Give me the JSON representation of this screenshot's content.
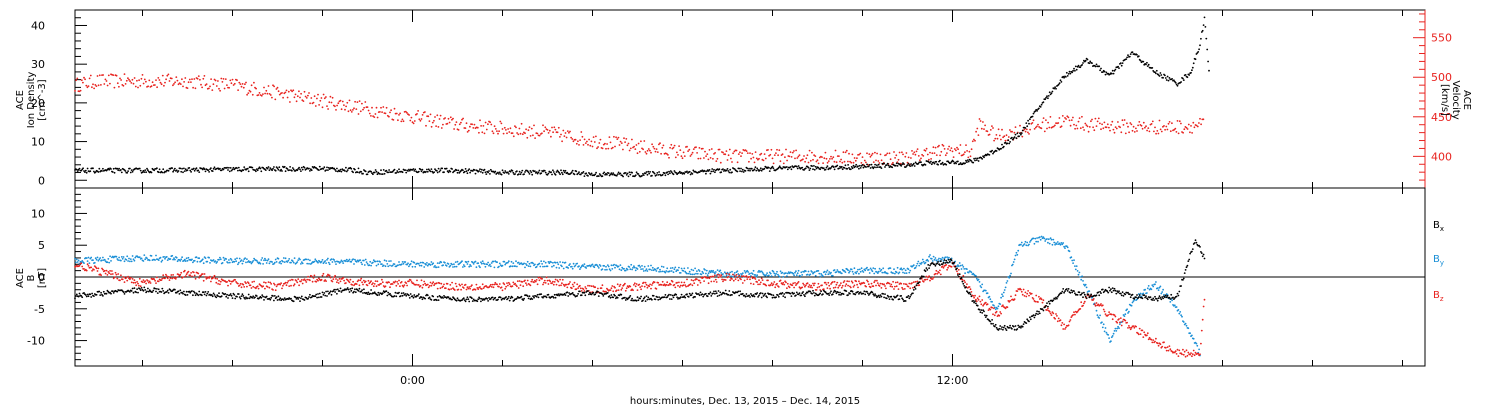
{
  "chart_data": [
    {
      "type": "scatter",
      "panel": "top",
      "ylabel_left": [
        "ACE",
        "Ion Density",
        "[cm^-3]"
      ],
      "ylabel_right": [
        "ACE",
        "Velocity",
        "[km/s]"
      ],
      "ylim_left": [
        -2,
        44
      ],
      "ylim_right": [
        360,
        585
      ],
      "yticks_left": [
        0,
        10,
        20,
        30,
        40
      ],
      "yticks_right": [
        400,
        450,
        500,
        550
      ],
      "series": [
        {
          "axis": "left",
          "color": "#000000",
          "points_hours": [
            -7.5,
            -6,
            -4,
            -2,
            -1.2,
            -1,
            0,
            1,
            2,
            3,
            3.5,
            4,
            5,
            6,
            7,
            8,
            9,
            10,
            11,
            11.5,
            12,
            12.5,
            13,
            13.5,
            14,
            14.5,
            15,
            15.5,
            16,
            16.5,
            17,
            17.3,
            17.5,
            17.6,
            17.7
          ],
          "values": [
            2.5,
            2.5,
            2.8,
            3,
            2.5,
            2,
            2.5,
            2.5,
            2,
            2,
            2,
            1.5,
            1.5,
            2,
            2.5,
            3,
            3.2,
            3.5,
            4,
            4.5,
            4.5,
            5,
            8,
            12,
            20,
            27,
            31,
            27,
            33,
            28,
            25,
            28,
            35,
            42,
            28
          ]
        },
        {
          "axis": "right",
          "color": "#e8231f",
          "points_hours": [
            -7.5,
            -7,
            -6,
            -5,
            -4,
            -3,
            -2,
            -1,
            0,
            1,
            2,
            3,
            4,
            5,
            6,
            7,
            8,
            9,
            10,
            11,
            11.5,
            12,
            12.4,
            12.6,
            13,
            13.5,
            14,
            14.5,
            15,
            16,
            17,
            17.6
          ],
          "values": [
            490,
            495,
            495,
            495,
            490,
            480,
            470,
            460,
            450,
            440,
            435,
            430,
            420,
            412,
            405,
            400,
            400,
            400,
            398,
            398,
            405,
            408,
            405,
            440,
            425,
            432,
            440,
            445,
            440,
            437,
            437,
            440
          ]
        }
      ]
    },
    {
      "type": "scatter",
      "panel": "bottom",
      "ylabel": [
        "ACE",
        "B",
        "[nT]"
      ],
      "ylim": [
        -14,
        14
      ],
      "yticks": [
        -10,
        -5,
        0,
        5,
        10
      ],
      "legend": [
        "B",
        "B",
        "B"
      ],
      "legend_subscripts": [
        "x",
        "y",
        "z"
      ],
      "series": [
        {
          "name": "Bx",
          "color": "#000000",
          "points_hours": [
            -7.5,
            -6,
            -4,
            -2.5,
            -1.5,
            0,
            1,
            2,
            3,
            4,
            5,
            6,
            7,
            8,
            9,
            10,
            11,
            11.5,
            12,
            12.3,
            12.6,
            13,
            13.5,
            14,
            14.5,
            15,
            15.5,
            16,
            16.5,
            17,
            17.4,
            17.6
          ],
          "values": [
            -3,
            -2,
            -3,
            -3.5,
            -2,
            -3,
            -3.5,
            -3.5,
            -3,
            -2.5,
            -3.5,
            -3,
            -2.5,
            -3,
            -2.5,
            -2.5,
            -3.5,
            2,
            2.5,
            -2,
            -5,
            -8,
            -8,
            -5,
            -2,
            -3,
            -2,
            -3,
            -3.5,
            -3,
            6,
            3
          ]
        },
        {
          "name": "By",
          "color": "#1a8fd6",
          "points_hours": [
            -7.5,
            -6,
            -4,
            -2,
            0,
            1,
            2,
            3,
            4,
            5,
            6,
            7,
            8,
            9,
            10,
            11,
            11.5,
            12,
            12.5,
            13,
            13.5,
            14,
            14.5,
            15,
            15.5,
            16,
            16.5,
            17,
            17.5
          ],
          "values": [
            2.5,
            3,
            2.5,
            2.5,
            2,
            2,
            2,
            2,
            1.5,
            1.5,
            1,
            0.5,
            0.5,
            0.5,
            1,
            1,
            3,
            2.5,
            0,
            -5,
            5,
            6,
            5,
            -2,
            -10,
            -4,
            -1,
            -5,
            -12
          ]
        },
        {
          "name": "Bz",
          "color": "#e8231f",
          "points_hours": [
            -7.5,
            -6,
            -5,
            -4,
            -3,
            -2,
            -1,
            0,
            1,
            2,
            3,
            4,
            5,
            6,
            7,
            8,
            9,
            10,
            11,
            11.5,
            12,
            12.5,
            13,
            13.5,
            14,
            14.5,
            15,
            15.5,
            16,
            16.5,
            17,
            17.5,
            17.6
          ],
          "values": [
            2,
            -1,
            0.5,
            -1,
            -1.5,
            0,
            -1,
            -1,
            -1.5,
            -1.5,
            -0.5,
            -2,
            -1.5,
            -1,
            0,
            -1,
            -1.5,
            -1,
            -1.5,
            0,
            2,
            -3,
            -6,
            -2,
            -4,
            -8,
            -3,
            -6,
            -8,
            -10,
            -12,
            -12,
            -3
          ]
        }
      ]
    }
  ],
  "x_axis": {
    "range_hours": [
      -7.5,
      22.5
    ],
    "tick_labels": [
      "0:00",
      "12:00"
    ],
    "tick_label_hours": [
      0,
      12
    ],
    "minor_step_hours": 2,
    "xlabel": "hours:minutes, Dec. 13, 2015 – Dec. 14, 2015"
  }
}
